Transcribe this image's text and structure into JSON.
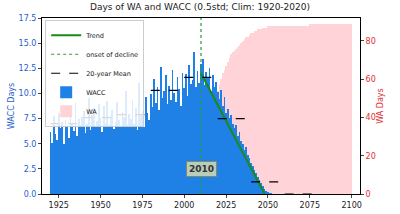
{
  "chart_data": {
    "type": "bar",
    "title": "Days of WA and WACC (0.5std; Clim: 1920-2020)",
    "y_label": "WACC Days",
    "y2_label": "WA Days",
    "xlim": [
      1915,
      2105
    ],
    "xticks": [
      1925,
      1950,
      1975,
      2000,
      2025,
      2050,
      2075,
      2100
    ],
    "ylim": [
      0,
      17.5
    ],
    "yticks": [
      {
        "value": 0,
        "label": "0.0"
      },
      {
        "value": 2.5,
        "label": "2.5"
      },
      {
        "value": 5,
        "label": "5.0"
      },
      {
        "value": 7.5,
        "label": "7.5"
      },
      {
        "value": 10,
        "label": "10.0"
      },
      {
        "value": 12.5,
        "label": "12.5"
      },
      {
        "value": 15,
        "label": "15.0"
      },
      {
        "value": 17.5,
        "label": "17.5"
      }
    ],
    "y2lim": [
      0,
      92
    ],
    "y2ticks": [
      0,
      20,
      40,
      60,
      80
    ],
    "legend": "upper left",
    "grid": false,
    "series": [
      {
        "name": "Trend",
        "type": "line",
        "color": "#1a8a1a",
        "line_style": "solid",
        "x": [
          2010,
          2048
        ],
        "values": [
          12.0,
          0.0
        ]
      },
      {
        "name": "onset of decline",
        "type": "line",
        "color": "#2e9a2e",
        "line_style": "dotted",
        "x": [
          2010,
          2010
        ],
        "values": [
          0,
          17.5
        ]
      },
      {
        "name": "20-year Mean",
        "type": "segments",
        "color": "#000000",
        "line_style": "dashed",
        "x_start": [
          1920,
          1940,
          1960,
          1980,
          2000,
          2020,
          2040,
          2060
        ],
        "x_end": [
          1940,
          1960,
          1980,
          2000,
          2020,
          2040,
          2060,
          2080
        ],
        "values": [
          7.0,
          7.6,
          7.9,
          10.3,
          11.6,
          7.5,
          1.2,
          0.0
        ]
      },
      {
        "name": "WACC",
        "type": "bar",
        "color": "#1f80e6",
        "x": [
          1920,
          1921,
          1922,
          1923,
          1924,
          1925,
          1926,
          1927,
          1928,
          1929,
          1930,
          1931,
          1932,
          1933,
          1934,
          1935,
          1936,
          1937,
          1938,
          1939,
          1940,
          1941,
          1942,
          1943,
          1944,
          1945,
          1946,
          1947,
          1948,
          1949,
          1950,
          1951,
          1952,
          1953,
          1954,
          1955,
          1956,
          1957,
          1958,
          1959,
          1960,
          1961,
          1962,
          1963,
          1964,
          1965,
          1966,
          1967,
          1968,
          1969,
          1970,
          1971,
          1972,
          1973,
          1974,
          1975,
          1976,
          1977,
          1978,
          1979,
          1980,
          1981,
          1982,
          1983,
          1984,
          1985,
          1986,
          1987,
          1988,
          1989,
          1990,
          1991,
          1992,
          1993,
          1994,
          1995,
          1996,
          1997,
          1998,
          1999,
          2000,
          2001,
          2002,
          2003,
          2004,
          2005,
          2006,
          2007,
          2008,
          2009,
          2010,
          2011,
          2012,
          2013,
          2014,
          2015,
          2016,
          2017,
          2018,
          2019,
          2020,
          2021,
          2022,
          2023,
          2024,
          2025,
          2026,
          2027,
          2028,
          2029,
          2030,
          2031,
          2032,
          2033,
          2034,
          2035,
          2036,
          2037,
          2038,
          2039,
          2040,
          2041,
          2042,
          2043,
          2044,
          2045,
          2046,
          2047,
          2048,
          2049,
          2050,
          2051,
          2052,
          2053,
          2054,
          2055
        ],
        "values": [
          6.2,
          5.1,
          7.8,
          6.0,
          5.4,
          8.1,
          6.6,
          7.2,
          5.0,
          7.4,
          6.8,
          5.6,
          8.0,
          7.1,
          6.3,
          9.0,
          5.8,
          7.5,
          6.9,
          7.7,
          8.3,
          6.1,
          7.0,
          9.5,
          6.4,
          7.9,
          8.6,
          6.7,
          7.3,
          8.9,
          7.6,
          6.2,
          8.8,
          7.1,
          9.2,
          6.9,
          7.8,
          8.4,
          6.5,
          7.2,
          9.1,
          7.4,
          6.8,
          8.2,
          7.7,
          10.2,
          6.9,
          8.0,
          7.5,
          9.3,
          7.0,
          8.6,
          6.4,
          11.0,
          7.9,
          8.3,
          6.7,
          9.6,
          8.1,
          7.4,
          9.9,
          8.7,
          11.4,
          9.0,
          10.6,
          8.4,
          12.6,
          9.5,
          10.2,
          11.8,
          8.9,
          10.7,
          9.3,
          12.3,
          10.0,
          9.1,
          11.6,
          10.4,
          8.8,
          12.0,
          10.5,
          11.9,
          9.7,
          12.8,
          10.9,
          11.3,
          14.1,
          10.6,
          12.2,
          11.0,
          12.9,
          13.4,
          10.8,
          12.1,
          11.5,
          12.5,
          10.2,
          11.8,
          10.6,
          11.1,
          10.1,
          9.4,
          10.3,
          8.8,
          9.6,
          8.1,
          8.5,
          7.6,
          7.9,
          7.0,
          6.6,
          6.9,
          5.8,
          6.2,
          5.3,
          5.0,
          4.4,
          4.7,
          3.9,
          3.6,
          3.1,
          2.8,
          2.4,
          2.1,
          1.7,
          1.4,
          1.1,
          0.8,
          0.5,
          0.3,
          0.2,
          0.1,
          0.1,
          0,
          0,
          0
        ]
      },
      {
        "name": "WA",
        "type": "bar",
        "color": "#ffd3d8",
        "axis": "y2",
        "x": [
          2005,
          2006,
          2007,
          2008,
          2009,
          2010,
          2011,
          2012,
          2013,
          2014,
          2015,
          2016,
          2017,
          2018,
          2019,
          2020,
          2021,
          2022,
          2023,
          2024,
          2025,
          2026,
          2027,
          2028,
          2029,
          2030,
          2031,
          2032,
          2033,
          2034,
          2035,
          2036,
          2037,
          2038,
          2039,
          2040,
          2041,
          2042,
          2043,
          2044,
          2045,
          2046,
          2047,
          2048,
          2049,
          2050,
          2051,
          2052,
          2053,
          2054,
          2055,
          2056,
          2057,
          2058,
          2059,
          2060,
          2061,
          2062,
          2063,
          2064,
          2065,
          2066,
          2067,
          2068,
          2069,
          2070,
          2071,
          2072,
          2073,
          2074,
          2075,
          2076,
          2077,
          2078,
          2079,
          2080,
          2081,
          2082,
          2083,
          2084,
          2085,
          2086,
          2087,
          2088,
          2089,
          2090,
          2091,
          2092,
          2093,
          2094,
          2095,
          2096,
          2097,
          2098,
          2099,
          2100
        ],
        "values": [
          0.5,
          1,
          2,
          3,
          5,
          8,
          12,
          16,
          21,
          26,
          31,
          36,
          41,
          46,
          50,
          54,
          57,
          60,
          63,
          65,
          67,
          69,
          71,
          73,
          74,
          75,
          76,
          77,
          78,
          79,
          80,
          81,
          82,
          82,
          83,
          84,
          84,
          85,
          85,
          86,
          86,
          86,
          87,
          87,
          87,
          88,
          88,
          88,
          88,
          88,
          88,
          88,
          88,
          88,
          88,
          88,
          88,
          88,
          88,
          88,
          88,
          88,
          88,
          88,
          88,
          88,
          88,
          88,
          88,
          88,
          89,
          89,
          89,
          89,
          89,
          89,
          89,
          89,
          89,
          89,
          89,
          89,
          89,
          89,
          89,
          89,
          89,
          89,
          89,
          89,
          89,
          89,
          89,
          89,
          89,
          89
        ]
      }
    ],
    "annotations": [
      {
        "text": "2010",
        "x": 2010,
        "y": 2.5
      }
    ]
  }
}
